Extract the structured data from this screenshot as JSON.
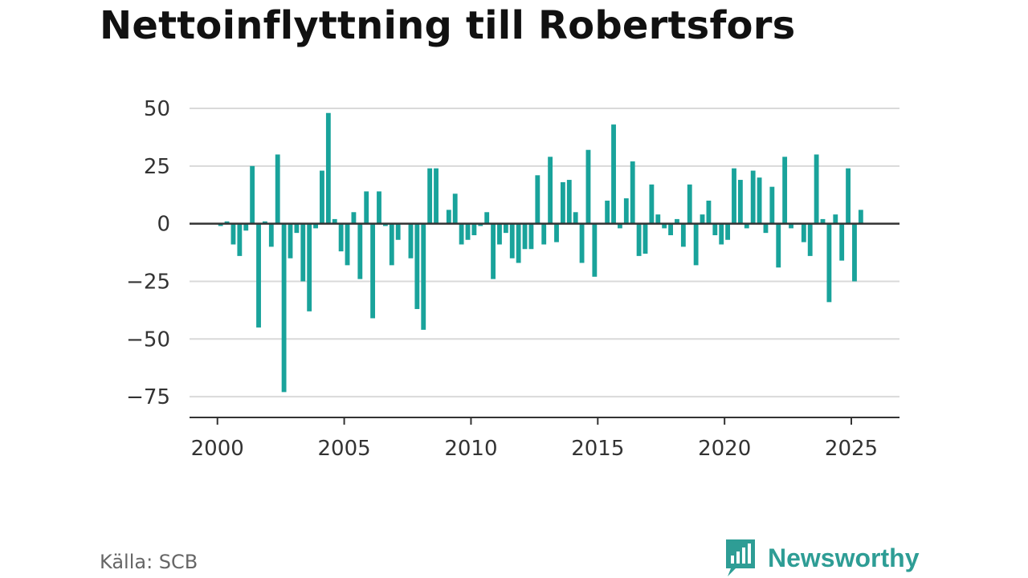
{
  "title": "Nettoinflyttning till Robertsfors",
  "source": "Källa: SCB",
  "brand": "Newsworthy",
  "brand_icon": "bar-chart-speech-bubble-icon",
  "colors": {
    "bar": "#19a39b",
    "grid": "#d9d9d9",
    "axis": "#333333",
    "brand": "#2e9d95"
  },
  "chart_data": {
    "type": "bar",
    "title": "Nettoinflyttning till Robertsfors",
    "xlabel": "",
    "ylabel": "",
    "grid": true,
    "legend": "none",
    "xlim": [
      1998.9,
      2026.9
    ],
    "ylim": [
      -84,
      58
    ],
    "x_ticks": [
      2000,
      2005,
      2010,
      2015,
      2020,
      2025
    ],
    "x_tick_labels": [
      "2000",
      "2005",
      "2010",
      "2015",
      "2020",
      "2025"
    ],
    "y_ticks": [
      50,
      25,
      0,
      -25,
      -50,
      -75
    ],
    "y_tick_labels": [
      "50",
      "25",
      "0",
      "−25",
      "−50",
      "−75"
    ],
    "x": [
      2000.125,
      2000.375,
      2000.625,
      2000.875,
      2001.125,
      2001.375,
      2001.625,
      2001.875,
      2002.125,
      2002.375,
      2002.625,
      2002.875,
      2003.125,
      2003.375,
      2003.625,
      2003.875,
      2004.125,
      2004.375,
      2004.625,
      2004.875,
      2005.125,
      2005.375,
      2005.625,
      2005.875,
      2006.125,
      2006.375,
      2006.625,
      2006.875,
      2007.125,
      2007.375,
      2007.625,
      2007.875,
      2008.125,
      2008.375,
      2008.625,
      2008.875,
      2009.125,
      2009.375,
      2009.625,
      2009.875,
      2010.125,
      2010.375,
      2010.625,
      2010.875,
      2011.125,
      2011.375,
      2011.625,
      2011.875,
      2012.125,
      2012.375,
      2012.625,
      2012.875,
      2013.125,
      2013.375,
      2013.625,
      2013.875,
      2014.125,
      2014.375,
      2014.625,
      2014.875,
      2015.125,
      2015.375,
      2015.625,
      2015.875,
      2016.125,
      2016.375,
      2016.625,
      2016.875,
      2017.125,
      2017.375,
      2017.625,
      2017.875,
      2018.125,
      2018.375,
      2018.625,
      2018.875,
      2019.125,
      2019.375,
      2019.625,
      2019.875,
      2020.125,
      2020.375,
      2020.625,
      2020.875,
      2021.125,
      2021.375,
      2021.625,
      2021.875,
      2022.125,
      2022.375,
      2022.625,
      2022.875,
      2023.125,
      2023.375,
      2023.625,
      2023.875,
      2024.125,
      2024.375,
      2024.625,
      2024.875,
      2025.125,
      2025.375
    ],
    "values": [
      -1,
      1,
      -9,
      -14,
      -3,
      25,
      -45,
      1,
      -10,
      30,
      -73,
      -15,
      -4,
      -25,
      -38,
      -2,
      23,
      48,
      2,
      -12,
      -18,
      5,
      -24,
      14,
      -41,
      14,
      -1,
      -18,
      -7,
      0,
      -15,
      -37,
      -46,
      24,
      24,
      0,
      6,
      13,
      -9,
      -7,
      -5,
      -1,
      5,
      -24,
      -9,
      -4,
      -15,
      -17,
      -11,
      -11,
      21,
      -9,
      29,
      -8,
      18,
      19,
      5,
      -17,
      32,
      -23,
      0,
      10,
      43,
      -2,
      11,
      27,
      -14,
      -13,
      17,
      4,
      -2,
      -5,
      2,
      -10,
      17,
      -18,
      4,
      10,
      -5,
      -9,
      -7,
      24,
      19,
      -2,
      23,
      20,
      -4,
      16,
      -19,
      29,
      -2,
      0,
      -8,
      -14,
      30,
      2,
      -34,
      4,
      -16,
      24,
      -25,
      6
    ]
  }
}
